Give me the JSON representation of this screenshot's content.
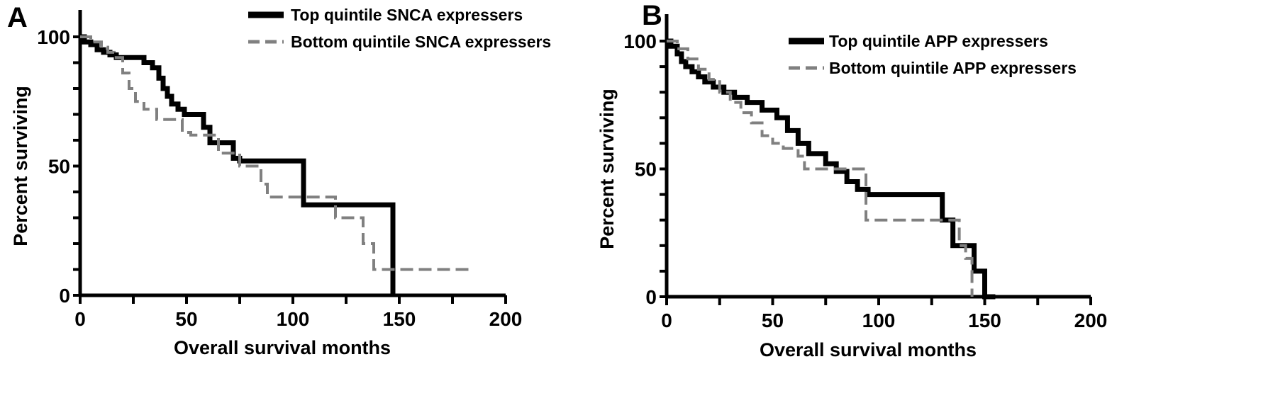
{
  "chart_data": [
    {
      "type": "line",
      "panel": "A",
      "xlabel": "Overall survival months",
      "ylabel": "Percent surviving",
      "xlim": [
        0,
        200
      ],
      "ylim": [
        0,
        100
      ],
      "xticks": [
        0,
        50,
        100,
        150,
        200
      ],
      "yticks": [
        0,
        50,
        100
      ],
      "legend_position": "top-right",
      "series": [
        {
          "name": "Top quintile SNCA expressers",
          "color": "#000000",
          "style": "solid",
          "x": [
            0,
            2,
            5,
            8,
            11,
            14,
            17,
            30,
            34,
            37,
            39,
            41,
            43,
            46,
            49,
            58,
            61,
            72,
            75,
            105,
            147,
            147
          ],
          "y": [
            100,
            98,
            97,
            95,
            94,
            93,
            92,
            90,
            88,
            84,
            80,
            77,
            74,
            72,
            70,
            65,
            59,
            53,
            52,
            35,
            35,
            0
          ]
        },
        {
          "name": "Bottom quintile SNCA expressers",
          "color": "#808080",
          "style": "dashed",
          "x": [
            0,
            5,
            10,
            13,
            16,
            20,
            23,
            26,
            30,
            36,
            48,
            52,
            65,
            75,
            85,
            88,
            105,
            120,
            133,
            138,
            183
          ],
          "y": [
            100,
            98,
            96,
            94,
            92,
            86,
            80,
            75,
            72,
            68,
            63,
            62,
            55,
            50,
            43,
            38,
            38,
            30,
            20,
            10,
            10
          ]
        }
      ]
    },
    {
      "type": "line",
      "panel": "B",
      "xlabel": "Overall survival months",
      "ylabel": "Percent surviving",
      "xlim": [
        0,
        200
      ],
      "ylim": [
        0,
        100
      ],
      "xticks": [
        0,
        50,
        100,
        150,
        200
      ],
      "yticks": [
        0,
        50,
        100
      ],
      "legend_position": "top-right",
      "series": [
        {
          "name": "Top quintile APP expressers",
          "color": "#000000",
          "style": "solid",
          "x": [
            0,
            2,
            5,
            7,
            9,
            12,
            15,
            18,
            22,
            27,
            32,
            38,
            45,
            52,
            57,
            62,
            67,
            75,
            80,
            85,
            90,
            95,
            100,
            113,
            130,
            135,
            140,
            145,
            150,
            155
          ],
          "y": [
            100,
            98,
            95,
            92,
            90,
            88,
            86,
            84,
            82,
            80,
            78,
            76,
            73,
            70,
            65,
            60,
            56,
            52,
            49,
            45,
            42,
            40,
            40,
            40,
            30,
            20,
            20,
            10,
            0,
            0
          ]
        },
        {
          "name": "Bottom quintile APP expressers",
          "color": "#808080",
          "style": "dashed",
          "x": [
            0,
            5,
            10,
            15,
            20,
            25,
            30,
            35,
            40,
            45,
            50,
            55,
            62,
            65,
            75,
            85,
            90,
            94,
            100,
            130,
            138,
            141,
            144
          ],
          "y": [
            100,
            97,
            93,
            89,
            85,
            80,
            76,
            72,
            68,
            63,
            60,
            58,
            55,
            50,
            50,
            50,
            50,
            30,
            30,
            30,
            20,
            15,
            0
          ]
        }
      ]
    }
  ],
  "panels": [
    {
      "letter": "A"
    },
    {
      "letter": "B"
    }
  ]
}
